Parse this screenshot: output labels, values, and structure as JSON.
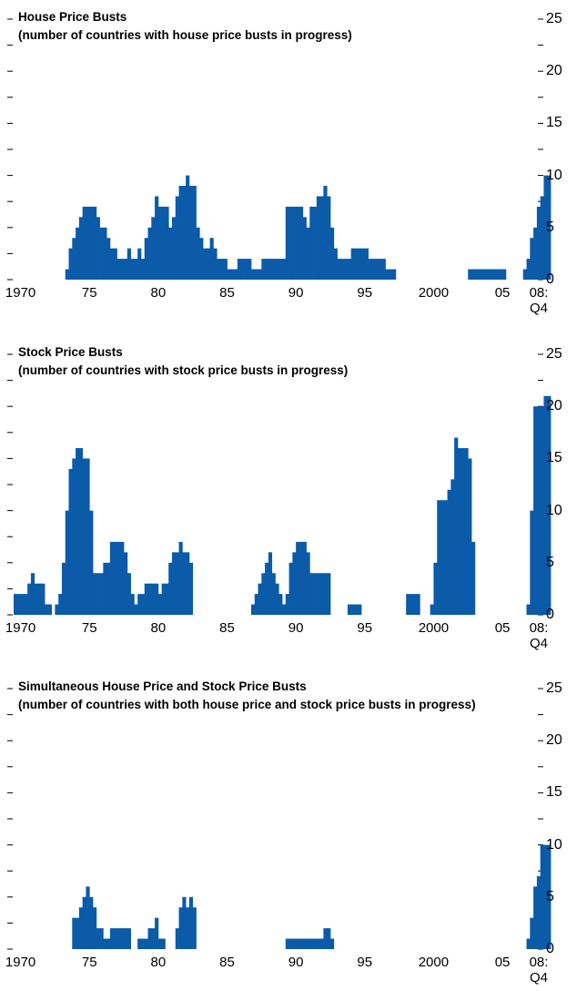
{
  "chart_data": [
    {
      "type": "bar",
      "title": "House Price Busts",
      "subtitle": "(number of countries with house price busts in progress)",
      "color": "#0b5ba8",
      "categories": [
        "1970",
        null,
        null,
        null,
        null,
        null,
        null,
        null,
        null,
        null,
        null,
        null,
        null,
        null,
        null,
        null,
        null,
        null,
        null,
        null,
        "75",
        null,
        null,
        null,
        null,
        null,
        null,
        null,
        null,
        null,
        null,
        null,
        null,
        null,
        null,
        null,
        null,
        null,
        null,
        null,
        "80",
        null,
        null,
        null,
        null,
        null,
        null,
        null,
        null,
        null,
        null,
        null,
        null,
        null,
        null,
        null,
        null,
        null,
        null,
        null,
        "85",
        null,
        null,
        null,
        null,
        null,
        null,
        null,
        null,
        null,
        null,
        null,
        null,
        null,
        null,
        null,
        null,
        null,
        null,
        null,
        "90",
        null,
        null,
        null,
        null,
        null,
        null,
        null,
        null,
        null,
        null,
        null,
        null,
        null,
        null,
        null,
        null,
        null,
        null,
        null,
        "95",
        null,
        null,
        null,
        null,
        null,
        null,
        null,
        null,
        null,
        null,
        null,
        null,
        null,
        null,
        null,
        null,
        null,
        null,
        null,
        "2000",
        null,
        null,
        null,
        null,
        null,
        null,
        null,
        null,
        null,
        null,
        null,
        null,
        null,
        null,
        null,
        null,
        null,
        null,
        null,
        "05",
        null,
        null,
        null,
        null,
        null,
        null,
        null,
        null,
        null,
        null,
        null,
        null,
        null,
        null,
        "08:\nQ4"
      ],
      "values": [
        0,
        0,
        0,
        0,
        0,
        0,
        0,
        0,
        0,
        0,
        0,
        0,
        0,
        0,
        0,
        1,
        3,
        4,
        5,
        6,
        7,
        7,
        7,
        7,
        6,
        5,
        5,
        4,
        3,
        3,
        2,
        2,
        2,
        3,
        2,
        2,
        3,
        2,
        4,
        5,
        6,
        8,
        7,
        7,
        7,
        5,
        6,
        8,
        9,
        9,
        10,
        9,
        9,
        5,
        4,
        3,
        3,
        4,
        3,
        2,
        2,
        2,
        1,
        1,
        1,
        2,
        2,
        2,
        2,
        1,
        1,
        1,
        2,
        2,
        2,
        2,
        2,
        2,
        2,
        7,
        7,
        7,
        7,
        7,
        6,
        5,
        7,
        7,
        8,
        8,
        9,
        8,
        5,
        3,
        2,
        2,
        2,
        2,
        3,
        3,
        3,
        3,
        3,
        2,
        2,
        2,
        2,
        2,
        1,
        1,
        1,
        0,
        0,
        0,
        0,
        0,
        0,
        0,
        0,
        0,
        0,
        0,
        0,
        0,
        0,
        0,
        0,
        0,
        0,
        0,
        0,
        0,
        1,
        1,
        1,
        1,
        1,
        1,
        1,
        1,
        1,
        1,
        1,
        0,
        0,
        0,
        0,
        0,
        1,
        2,
        4,
        5,
        7,
        8,
        10,
        10
      ],
      "ylim": [
        0,
        25
      ],
      "yticks": [
        0,
        5,
        10,
        15,
        20,
        25
      ],
      "yminorticks": [
        2.5,
        7.5,
        12.5,
        17.5,
        22.5
      ]
    },
    {
      "type": "bar",
      "title": "Stock Price Busts",
      "subtitle": "(number of countries with stock price busts in progress)",
      "color": "#0b5ba8",
      "categories": [
        "1970",
        null,
        null,
        null,
        null,
        null,
        null,
        null,
        null,
        null,
        null,
        null,
        null,
        null,
        null,
        null,
        null,
        null,
        null,
        null,
        "75",
        null,
        null,
        null,
        null,
        null,
        null,
        null,
        null,
        null,
        null,
        null,
        null,
        null,
        null,
        null,
        null,
        null,
        null,
        null,
        "80",
        null,
        null,
        null,
        null,
        null,
        null,
        null,
        null,
        null,
        null,
        null,
        null,
        null,
        null,
        null,
        null,
        null,
        null,
        null,
        "85",
        null,
        null,
        null,
        null,
        null,
        null,
        null,
        null,
        null,
        null,
        null,
        null,
        null,
        null,
        null,
        null,
        null,
        null,
        null,
        "90",
        null,
        null,
        null,
        null,
        null,
        null,
        null,
        null,
        null,
        null,
        null,
        null,
        null,
        null,
        null,
        null,
        null,
        null,
        null,
        "95",
        null,
        null,
        null,
        null,
        null,
        null,
        null,
        null,
        null,
        null,
        null,
        null,
        null,
        null,
        null,
        null,
        null,
        null,
        null,
        "2000",
        null,
        null,
        null,
        null,
        null,
        null,
        null,
        null,
        null,
        null,
        null,
        null,
        null,
        null,
        null,
        null,
        null,
        null,
        null,
        "05",
        null,
        null,
        null,
        null,
        null,
        null,
        null,
        null,
        null,
        null,
        null,
        null,
        null,
        null,
        "08:\nQ4"
      ],
      "values": [
        2,
        2,
        2,
        2,
        3,
        4,
        3,
        3,
        3,
        1,
        1,
        0,
        1,
        2,
        5,
        10,
        14,
        15,
        16,
        16,
        15,
        15,
        10,
        4,
        4,
        4,
        5,
        5,
        7,
        7,
        7,
        7,
        6,
        4,
        2,
        1,
        2,
        2,
        3,
        3,
        3,
        3,
        2,
        3,
        3,
        5,
        6,
        6,
        7,
        6,
        6,
        5,
        0,
        0,
        0,
        0,
        0,
        0,
        0,
        0,
        0,
        0,
        0,
        0,
        0,
        0,
        0,
        0,
        0,
        1,
        2,
        3,
        4,
        5,
        6,
        4,
        3,
        2,
        1,
        2,
        5,
        6,
        7,
        7,
        7,
        6,
        4,
        4,
        4,
        4,
        4,
        4,
        0,
        0,
        0,
        0,
        0,
        1,
        1,
        1,
        1,
        0,
        0,
        0,
        0,
        0,
        0,
        0,
        0,
        0,
        0,
        0,
        0,
        0,
        2,
        2,
        2,
        2,
        0,
        0,
        0,
        1,
        5,
        11,
        11,
        11,
        12,
        13,
        17,
        16,
        16,
        16,
        15,
        7,
        0,
        0,
        0,
        0,
        0,
        0,
        0,
        0,
        0,
        0,
        0,
        0,
        0,
        0,
        0,
        1,
        10,
        20,
        20,
        20,
        21,
        21
      ],
      "ylim": [
        0,
        25
      ],
      "yticks": [
        0,
        5,
        10,
        15,
        20,
        25
      ],
      "yminorticks": [
        2.5,
        7.5,
        12.5,
        17.5,
        22.5
      ]
    },
    {
      "type": "bar",
      "title": "Simultaneous House Price and Stock Price Busts",
      "subtitle": "(number of countries with both house price and stock price busts in progress)",
      "color": "#0b5ba8",
      "categories": [
        "1970",
        null,
        null,
        null,
        null,
        null,
        null,
        null,
        null,
        null,
        null,
        null,
        null,
        null,
        null,
        null,
        null,
        null,
        null,
        null,
        "75",
        null,
        null,
        null,
        null,
        null,
        null,
        null,
        null,
        null,
        null,
        null,
        null,
        null,
        null,
        null,
        null,
        null,
        null,
        null,
        "80",
        null,
        null,
        null,
        null,
        null,
        null,
        null,
        null,
        null,
        null,
        null,
        null,
        null,
        null,
        null,
        null,
        null,
        null,
        null,
        "85",
        null,
        null,
        null,
        null,
        null,
        null,
        null,
        null,
        null,
        null,
        null,
        null,
        null,
        null,
        null,
        null,
        null,
        null,
        null,
        "90",
        null,
        null,
        null,
        null,
        null,
        null,
        null,
        null,
        null,
        null,
        null,
        null,
        null,
        null,
        null,
        null,
        null,
        null,
        null,
        "95",
        null,
        null,
        null,
        null,
        null,
        null,
        null,
        null,
        null,
        null,
        null,
        null,
        null,
        null,
        null,
        null,
        null,
        null,
        null,
        "2000",
        null,
        null,
        null,
        null,
        null,
        null,
        null,
        null,
        null,
        null,
        null,
        null,
        null,
        null,
        null,
        null,
        null,
        null,
        null,
        "05",
        null,
        null,
        null,
        null,
        null,
        null,
        null,
        null,
        null,
        null,
        null,
        null,
        null,
        null,
        "08:\nQ4"
      ],
      "values": [
        0,
        0,
        0,
        0,
        0,
        0,
        0,
        0,
        0,
        0,
        0,
        0,
        0,
        0,
        0,
        0,
        0,
        3,
        3,
        4,
        5,
        6,
        5,
        4,
        2,
        2,
        1,
        1,
        2,
        2,
        2,
        2,
        2,
        2,
        0,
        0,
        1,
        1,
        1,
        2,
        2,
        3,
        1,
        1,
        0,
        0,
        0,
        2,
        4,
        5,
        4,
        5,
        4,
        0,
        0,
        0,
        0,
        0,
        0,
        0,
        0,
        0,
        0,
        0,
        0,
        0,
        0,
        0,
        0,
        0,
        0,
        0,
        0,
        0,
        0,
        0,
        0,
        0,
        0,
        1,
        1,
        1,
        1,
        1,
        1,
        1,
        1,
        1,
        1,
        1,
        2,
        2,
        1,
        0,
        0,
        0,
        0,
        0,
        0,
        0,
        0,
        0,
        0,
        0,
        0,
        0,
        0,
        0,
        0,
        0,
        0,
        0,
        0,
        0,
        0,
        0,
        0,
        0,
        0,
        0,
        0,
        0,
        0,
        0,
        0,
        0,
        0,
        0,
        0,
        0,
        0,
        0,
        0,
        0,
        0,
        0,
        0,
        0,
        0,
        0,
        0,
        0,
        0,
        0,
        0,
        0,
        0,
        0,
        0,
        1,
        3,
        6,
        7,
        10,
        10,
        10
      ],
      "ylim": [
        0,
        25
      ],
      "yticks": [
        0,
        5,
        10,
        15,
        20,
        25
      ],
      "yminorticks": [
        2.5,
        7.5,
        12.5,
        17.5,
        22.5
      ]
    }
  ]
}
